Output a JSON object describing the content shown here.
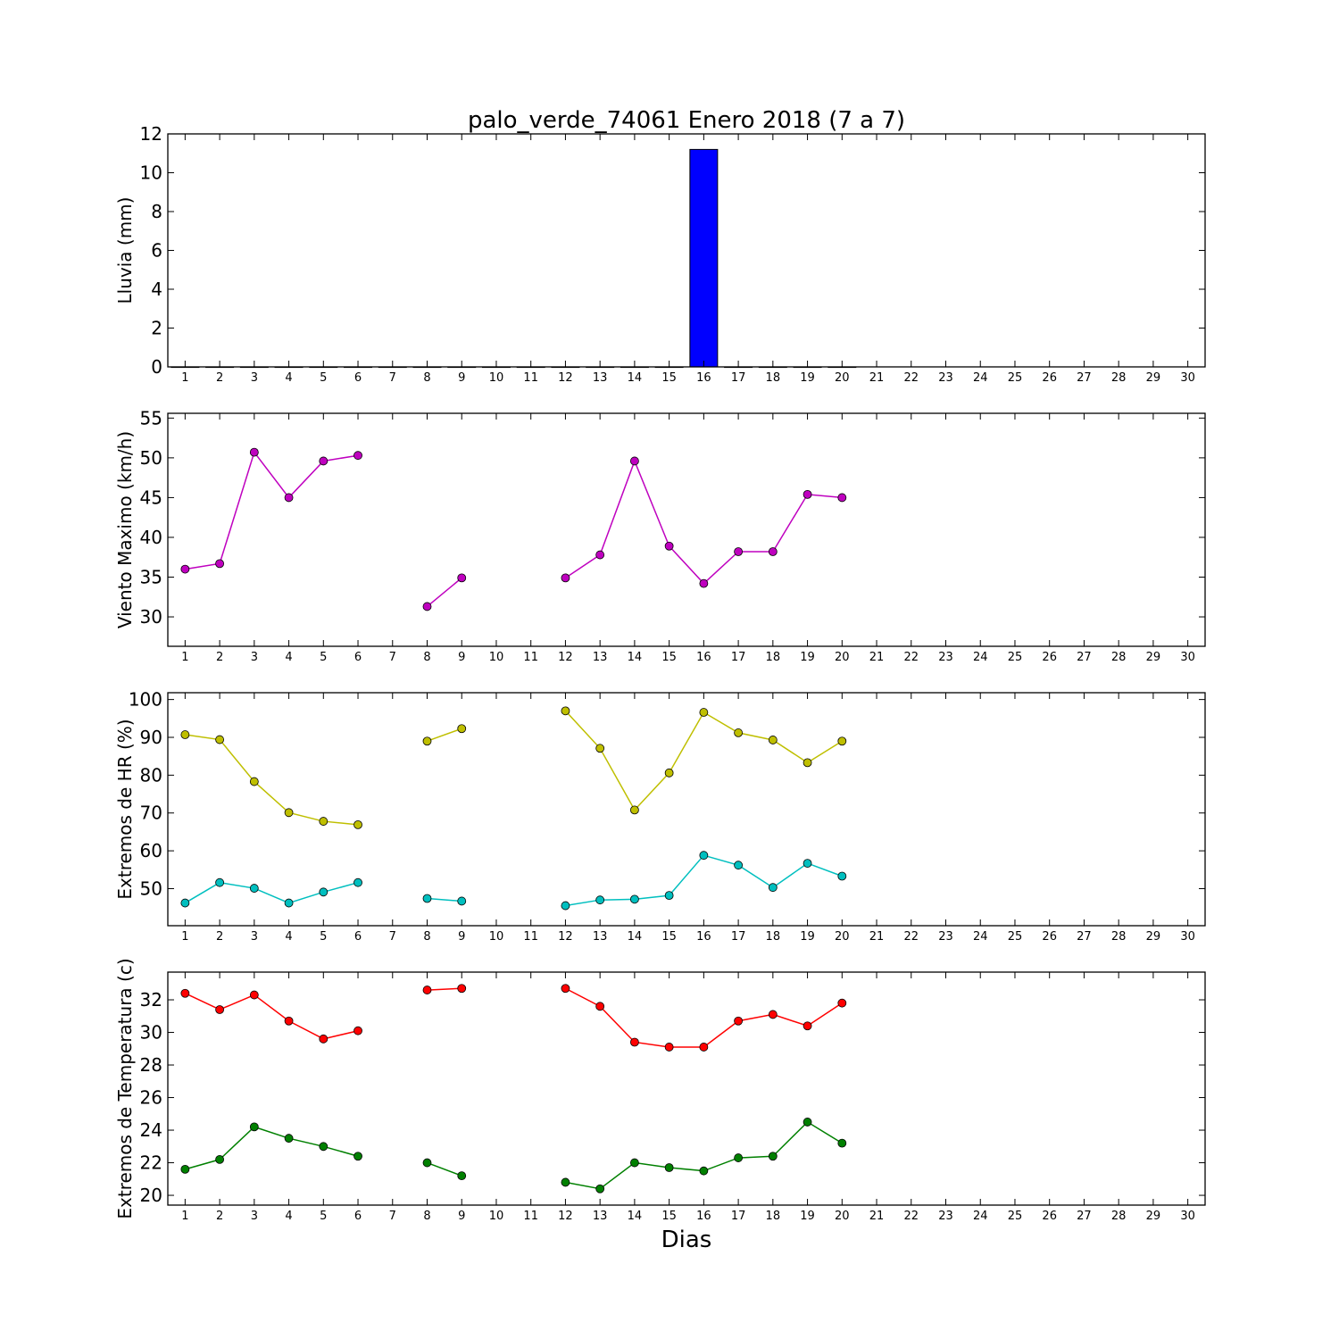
{
  "title": "palo_verde_74061 Enero 2018  (7 a 7)",
  "xlabel": "Dias",
  "chart_data": [
    {
      "type": "bar",
      "ylabel": "Lluvia (mm)",
      "ylim": [
        0,
        12
      ],
      "yticks": [
        0,
        2,
        4,
        6,
        8,
        10,
        12
      ],
      "xlim": [
        0.5,
        30.5
      ],
      "xticks": [
        1,
        2,
        3,
        4,
        5,
        6,
        7,
        8,
        9,
        10,
        11,
        12,
        13,
        14,
        15,
        16,
        17,
        18,
        19,
        20,
        21,
        22,
        23,
        24,
        25,
        26,
        27,
        28,
        29,
        30
      ],
      "series": [
        {
          "color": "#0000ff",
          "x": [
            1,
            2,
            3,
            4,
            5,
            6,
            7,
            8,
            9,
            10,
            11,
            12,
            13,
            14,
            15,
            16,
            17,
            18,
            19,
            20
          ],
          "values": [
            0,
            0,
            0,
            0,
            0,
            0,
            0,
            0,
            0,
            0,
            0,
            0,
            0,
            0,
            0,
            11.2,
            0,
            0,
            0,
            0
          ]
        }
      ]
    },
    {
      "type": "line",
      "ylabel": "Viento Maximo (km/h)",
      "ylim": [
        26.3,
        55.6
      ],
      "yticks": [
        30,
        35,
        40,
        45,
        50,
        55
      ],
      "xlim": [
        0.5,
        30.5
      ],
      "xticks": [
        1,
        2,
        3,
        4,
        5,
        6,
        7,
        8,
        9,
        10,
        11,
        12,
        13,
        14,
        15,
        16,
        17,
        18,
        19,
        20,
        21,
        22,
        23,
        24,
        25,
        26,
        27,
        28,
        29,
        30
      ],
      "series": [
        {
          "color": "#bf00bf",
          "x": [
            1,
            2,
            3,
            4,
            5,
            6,
            7,
            8,
            9,
            10,
            11,
            12,
            13,
            14,
            15,
            16,
            17,
            18,
            19,
            20
          ],
          "values": [
            36.0,
            36.7,
            50.7,
            45.0,
            49.6,
            50.3,
            null,
            31.3,
            34.9,
            null,
            null,
            34.9,
            37.8,
            49.6,
            38.9,
            34.2,
            38.2,
            38.2,
            45.4,
            45.0
          ]
        }
      ]
    },
    {
      "type": "line",
      "ylabel": "Extremos de HR (%)",
      "ylim": [
        40.2,
        101.8
      ],
      "yticks": [
        50,
        60,
        70,
        80,
        90,
        100
      ],
      "xlim": [
        0.5,
        30.5
      ],
      "xticks": [
        1,
        2,
        3,
        4,
        5,
        6,
        7,
        8,
        9,
        10,
        11,
        12,
        13,
        14,
        15,
        16,
        17,
        18,
        19,
        20,
        21,
        22,
        23,
        24,
        25,
        26,
        27,
        28,
        29,
        30
      ],
      "series": [
        {
          "color": "#bfbf00",
          "x": [
            1,
            2,
            3,
            4,
            5,
            6,
            7,
            8,
            9,
            10,
            11,
            12,
            13,
            14,
            15,
            16,
            17,
            18,
            19,
            20
          ],
          "values": [
            90.7,
            89.4,
            78.3,
            70.1,
            67.8,
            66.9,
            null,
            89.0,
            92.3,
            null,
            null,
            97.0,
            87.1,
            70.8,
            80.6,
            96.6,
            91.2,
            89.3,
            83.3,
            89.0
          ]
        },
        {
          "color": "#00bfbf",
          "x": [
            1,
            2,
            3,
            4,
            5,
            6,
            7,
            8,
            9,
            10,
            11,
            12,
            13,
            14,
            15,
            16,
            17,
            18,
            19,
            20
          ],
          "values": [
            46.2,
            51.6,
            50.1,
            46.2,
            49.1,
            51.6,
            null,
            47.4,
            46.7,
            null,
            null,
            45.5,
            47.0,
            47.2,
            48.2,
            58.8,
            56.2,
            50.3,
            56.7,
            53.3
          ]
        }
      ]
    },
    {
      "type": "line",
      "ylabel": "Extremos de Temperatura (c)",
      "ylim": [
        19.4,
        33.7
      ],
      "yticks": [
        20,
        22,
        24,
        26,
        28,
        30,
        32
      ],
      "xlim": [
        0.5,
        30.5
      ],
      "xticks": [
        1,
        2,
        3,
        4,
        5,
        6,
        7,
        8,
        9,
        10,
        11,
        12,
        13,
        14,
        15,
        16,
        17,
        18,
        19,
        20,
        21,
        22,
        23,
        24,
        25,
        26,
        27,
        28,
        29,
        30
      ],
      "series": [
        {
          "color": "#ff0000",
          "x": [
            1,
            2,
            3,
            4,
            5,
            6,
            7,
            8,
            9,
            10,
            11,
            12,
            13,
            14,
            15,
            16,
            17,
            18,
            19,
            20
          ],
          "values": [
            32.4,
            31.4,
            32.3,
            30.7,
            29.6,
            30.1,
            null,
            32.6,
            32.7,
            null,
            null,
            32.7,
            31.6,
            29.4,
            29.1,
            29.1,
            30.7,
            31.1,
            30.4,
            31.8
          ]
        },
        {
          "color": "#008000",
          "x": [
            1,
            2,
            3,
            4,
            5,
            6,
            7,
            8,
            9,
            10,
            11,
            12,
            13,
            14,
            15,
            16,
            17,
            18,
            19,
            20
          ],
          "values": [
            21.6,
            22.2,
            24.2,
            23.5,
            23.0,
            22.4,
            null,
            22.0,
            21.2,
            null,
            null,
            20.8,
            20.4,
            22.0,
            21.7,
            21.5,
            22.3,
            22.4,
            24.5,
            23.2
          ]
        }
      ]
    }
  ]
}
